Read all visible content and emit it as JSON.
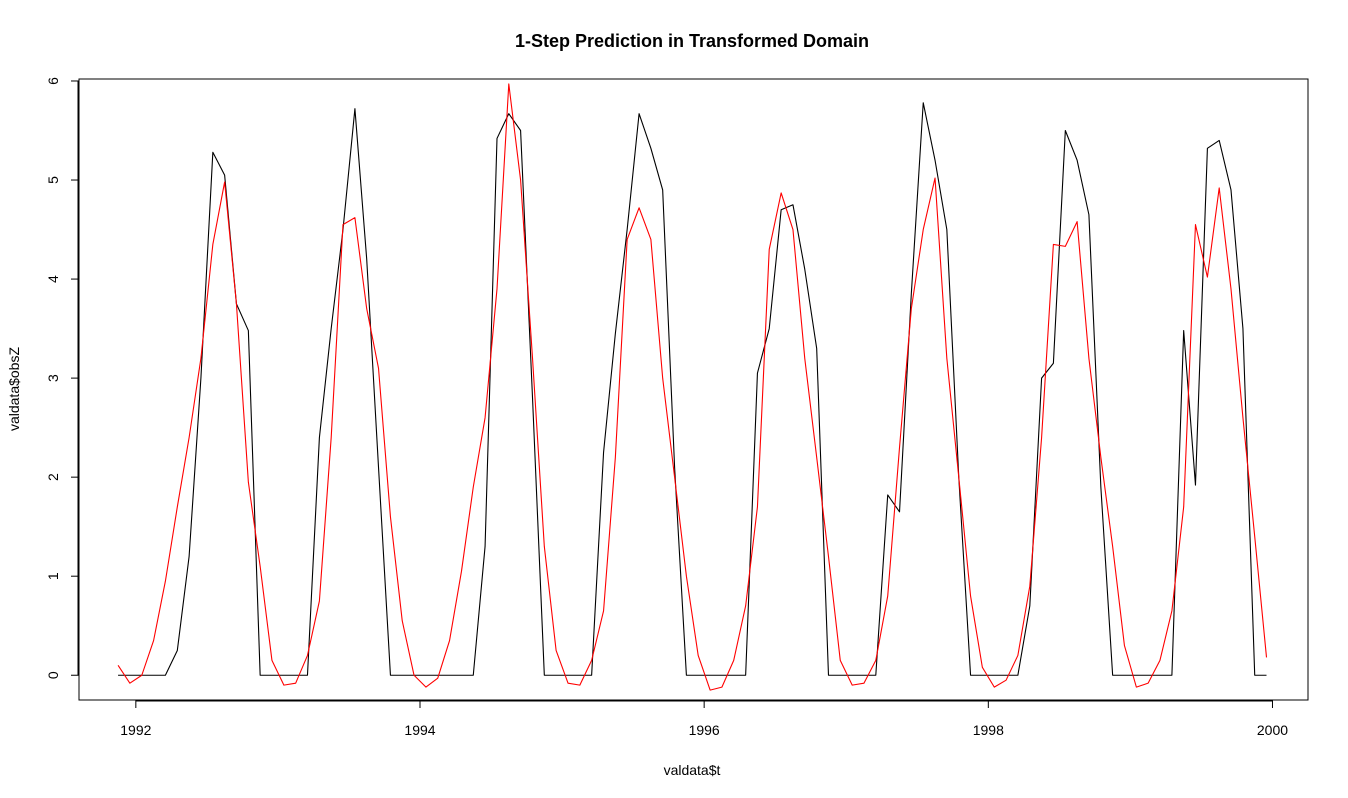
{
  "chart_data": {
    "type": "line",
    "title": "1-Step Prediction in Transformed Domain",
    "xlabel": "valdata$t",
    "ylabel": "valdata$obsZ",
    "xlim": [
      1991.6,
      2000.25
    ],
    "ylim": [
      -0.25,
      6.02
    ],
    "xticks": [
      1992,
      1994,
      1996,
      1998,
      2000
    ],
    "yticks": [
      0,
      1,
      2,
      3,
      4,
      5,
      6
    ],
    "grid": false,
    "legend": "none",
    "series": [
      {
        "color": "#000000",
        "x": [
          1991.875,
          1992.042,
          1992.208,
          1992.292,
          1992.375,
          1992.458,
          1992.542,
          1992.625,
          1992.708,
          1992.792,
          1992.875,
          1993.042,
          1993.208,
          1993.292,
          1993.375,
          1993.458,
          1993.542,
          1993.625,
          1993.708,
          1993.792,
          1993.875,
          1994.042,
          1994.208,
          1994.375,
          1994.458,
          1994.542,
          1994.625,
          1994.708,
          1994.792,
          1994.875,
          1995.042,
          1995.208,
          1995.292,
          1995.375,
          1995.458,
          1995.542,
          1995.625,
          1995.708,
          1995.792,
          1995.875,
          1996.042,
          1996.208,
          1996.292,
          1996.375,
          1996.458,
          1996.542,
          1996.625,
          1996.708,
          1996.792,
          1996.875,
          1997.042,
          1997.208,
          1997.292,
          1997.375,
          1997.458,
          1997.542,
          1997.625,
          1997.708,
          1997.792,
          1997.875,
          1998.042,
          1998.208,
          1998.292,
          1998.375,
          1998.458,
          1998.542,
          1998.625,
          1998.708,
          1998.792,
          1998.875,
          1999.042,
          1999.208,
          1999.292,
          1999.375,
          1999.458,
          1999.542,
          1999.625,
          1999.708,
          1999.792,
          1999.875,
          1999.958
        ],
        "y": [
          0,
          0,
          0,
          0.25,
          1.2,
          3.0,
          5.28,
          5.05,
          3.75,
          3.48,
          0,
          0,
          0,
          2.4,
          3.5,
          4.5,
          5.72,
          4.2,
          2.1,
          0,
          0,
          0,
          0,
          0,
          1.3,
          5.42,
          5.67,
          5.5,
          2.8,
          0,
          0,
          0,
          2.25,
          3.45,
          4.5,
          5.67,
          5.32,
          4.9,
          2.1,
          0,
          0,
          0,
          0,
          3.05,
          3.5,
          4.7,
          4.75,
          4.1,
          3.3,
          0,
          0,
          0,
          1.82,
          1.65,
          3.85,
          5.78,
          5.2,
          4.5,
          2.0,
          0,
          0,
          0,
          0.7,
          3.0,
          3.15,
          5.5,
          5.2,
          4.65,
          1.9,
          0,
          0,
          0,
          0,
          3.48,
          1.92,
          5.32,
          5.4,
          4.9,
          3.5,
          0,
          0
        ]
      },
      {
        "color": "#ff0000",
        "x": [
          1991.875,
          1991.958,
          1992.042,
          1992.125,
          1992.208,
          1992.292,
          1992.375,
          1992.458,
          1992.542,
          1992.625,
          1992.708,
          1992.792,
          1992.875,
          1992.958,
          1993.042,
          1993.125,
          1993.208,
          1993.292,
          1993.375,
          1993.458,
          1993.542,
          1993.625,
          1993.708,
          1993.792,
          1993.875,
          1993.958,
          1994.042,
          1994.125,
          1994.208,
          1994.292,
          1994.375,
          1994.458,
          1994.542,
          1994.625,
          1994.708,
          1994.792,
          1994.875,
          1994.958,
          1995.042,
          1995.125,
          1995.208,
          1995.292,
          1995.375,
          1995.458,
          1995.542,
          1995.625,
          1995.708,
          1995.792,
          1995.875,
          1995.958,
          1996.042,
          1996.125,
          1996.208,
          1996.292,
          1996.375,
          1996.458,
          1996.542,
          1996.625,
          1996.708,
          1996.792,
          1996.875,
          1996.958,
          1997.042,
          1997.125,
          1997.208,
          1997.292,
          1997.375,
          1997.458,
          1997.542,
          1997.625,
          1997.708,
          1997.792,
          1997.875,
          1997.958,
          1998.042,
          1998.125,
          1998.208,
          1998.292,
          1998.375,
          1998.458,
          1998.542,
          1998.625,
          1998.708,
          1998.792,
          1998.875,
          1998.958,
          1999.042,
          1999.125,
          1999.208,
          1999.292,
          1999.375,
          1999.458,
          1999.542,
          1999.625,
          1999.708,
          1999.792,
          1999.875,
          1999.958
        ],
        "y": [
          0.1,
          -0.08,
          0.0,
          0.35,
          0.95,
          1.7,
          2.4,
          3.2,
          4.35,
          4.98,
          3.75,
          1.95,
          1.1,
          0.15,
          -0.1,
          -0.08,
          0.2,
          0.75,
          2.4,
          4.55,
          4.62,
          3.7,
          3.1,
          1.6,
          0.55,
          0.0,
          -0.12,
          -0.03,
          0.35,
          1.05,
          1.9,
          2.6,
          3.9,
          5.97,
          5.0,
          3.2,
          1.3,
          0.25,
          -0.08,
          -0.1,
          0.15,
          0.65,
          2.2,
          4.4,
          4.72,
          4.4,
          3.0,
          2.0,
          1.0,
          0.2,
          -0.15,
          -0.12,
          0.15,
          0.7,
          1.7,
          4.3,
          4.87,
          4.5,
          3.2,
          2.2,
          1.2,
          0.15,
          -0.1,
          -0.08,
          0.15,
          0.8,
          2.3,
          3.7,
          4.5,
          5.02,
          3.2,
          2.0,
          0.8,
          0.08,
          -0.12,
          -0.05,
          0.2,
          0.9,
          2.4,
          4.35,
          4.33,
          4.58,
          3.2,
          2.2,
          1.3,
          0.3,
          -0.12,
          -0.08,
          0.15,
          0.65,
          1.7,
          4.55,
          4.02,
          4.92,
          3.9,
          2.6,
          1.4,
          0.18
        ]
      }
    ]
  }
}
